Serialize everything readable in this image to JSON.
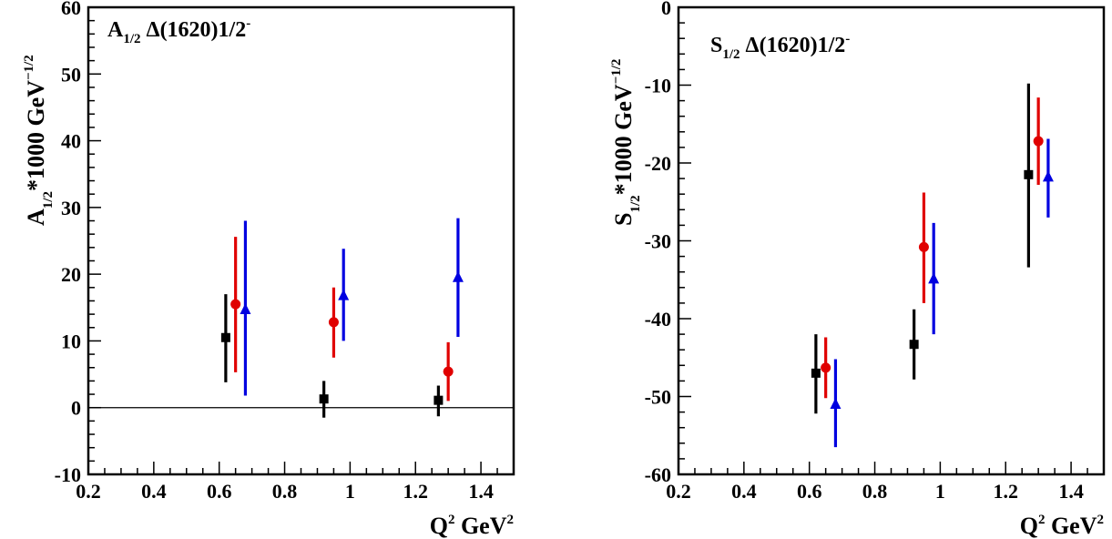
{
  "chart_data": [
    {
      "type": "scatter",
      "title": {
        "main": "A",
        "sub": "1/2",
        "rest": " Δ(1620)1/2",
        "sup": "-"
      },
      "xlabel": {
        "main": "Q",
        "sup1": "2",
        "unit": " GeV",
        "sup2": "2"
      },
      "ylabel": {
        "main": "A",
        "sub": "1/2",
        "rest": "*1000 GeV",
        "sup": "−1/2"
      },
      "xlim": [
        0.2,
        1.5
      ],
      "ylim": [
        -10,
        60
      ],
      "xticks": [
        "0.2",
        "0.4",
        "0.6",
        "0.8",
        "1",
        "1.2",
        "1.4"
      ],
      "yticks": [
        "-10",
        "0",
        "10",
        "20",
        "30",
        "40",
        "50",
        "60"
      ],
      "zero_line": true,
      "series": [
        {
          "color": "#000000",
          "marker": "square",
          "points": [
            {
              "x": 0.62,
              "y": 10.5,
              "ylo": 3.8,
              "yhi": 17.0
            },
            {
              "x": 0.92,
              "y": 1.3,
              "ylo": -1.5,
              "yhi": 4.0
            },
            {
              "x": 1.27,
              "y": 1.1,
              "ylo": -1.3,
              "yhi": 3.3
            }
          ]
        },
        {
          "color": "#e00000",
          "marker": "circle",
          "points": [
            {
              "x": 0.65,
              "y": 15.5,
              "ylo": 5.3,
              "yhi": 25.6
            },
            {
              "x": 0.95,
              "y": 12.8,
              "ylo": 7.5,
              "yhi": 18.0
            },
            {
              "x": 1.3,
              "y": 5.4,
              "ylo": 1.0,
              "yhi": 9.8
            }
          ]
        },
        {
          "color": "#0000e0",
          "marker": "triangle",
          "points": [
            {
              "x": 0.68,
              "y": 14.7,
              "ylo": 1.8,
              "yhi": 28.0
            },
            {
              "x": 0.98,
              "y": 16.8,
              "ylo": 10.0,
              "yhi": 23.8
            },
            {
              "x": 1.33,
              "y": 19.5,
              "ylo": 10.6,
              "yhi": 28.4
            }
          ]
        }
      ]
    },
    {
      "type": "scatter",
      "title": {
        "main": "S",
        "sub": "1/2",
        "rest": " Δ(1620)1/2",
        "sup": "-"
      },
      "xlabel": {
        "main": "Q",
        "sup1": "2",
        "unit": " GeV",
        "sup2": "2"
      },
      "ylabel": {
        "main": "S",
        "sub": "1/2",
        "rest": "*1000 GeV",
        "sup": "−1/2"
      },
      "xlim": [
        0.2,
        1.5
      ],
      "ylim": [
        -60,
        0
      ],
      "xticks": [
        "0.2",
        "0.4",
        "0.6",
        "0.8",
        "1",
        "1.2",
        "1.4"
      ],
      "yticks": [
        "-60",
        "-50",
        "-40",
        "-30",
        "-20",
        "-10",
        "0"
      ],
      "zero_line": false,
      "series": [
        {
          "color": "#000000",
          "marker": "square",
          "points": [
            {
              "x": 0.62,
              "y": -47.0,
              "ylo": -52.2,
              "yhi": -42.0
            },
            {
              "x": 0.92,
              "y": -43.3,
              "ylo": -47.8,
              "yhi": -38.8
            },
            {
              "x": 1.27,
              "y": -21.5,
              "ylo": -33.4,
              "yhi": -9.8
            }
          ]
        },
        {
          "color": "#e00000",
          "marker": "circle",
          "points": [
            {
              "x": 0.65,
              "y": -46.3,
              "ylo": -50.2,
              "yhi": -42.4
            },
            {
              "x": 0.95,
              "y": -30.8,
              "ylo": -38.0,
              "yhi": -23.8
            },
            {
              "x": 1.3,
              "y": -17.2,
              "ylo": -22.8,
              "yhi": -11.6
            }
          ]
        },
        {
          "color": "#0000e0",
          "marker": "triangle",
          "points": [
            {
              "x": 0.68,
              "y": -51.0,
              "ylo": -56.5,
              "yhi": -45.2
            },
            {
              "x": 0.98,
              "y": -34.9,
              "ylo": -42.0,
              "yhi": -27.7
            },
            {
              "x": 1.33,
              "y": -21.8,
              "ylo": -27.0,
              "yhi": -16.9
            }
          ]
        }
      ]
    }
  ]
}
